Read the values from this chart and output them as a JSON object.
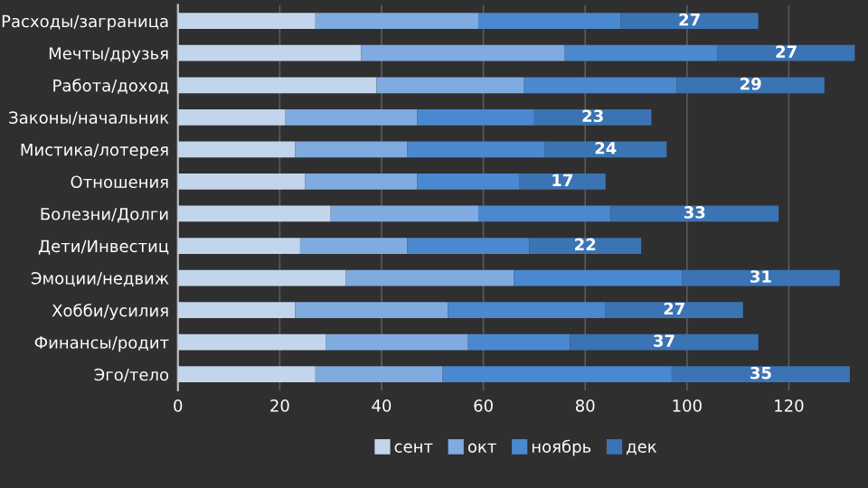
{
  "chart_data": {
    "type": "bar",
    "orientation": "horizontal",
    "stacked": true,
    "categories": [
      "Расходы/заграница",
      "Мечты/друзья",
      "Работа/доход",
      "Законы/начальник",
      "Мистика/лотерея",
      "Отношения",
      "Болезни/Долги",
      "Дети/Инвестиц",
      "Эмоции/недвиж",
      "Хобби/усилия",
      "Финансы/родит",
      "Эго/тело"
    ],
    "series": [
      {
        "name": "сент",
        "color": "#c3d5ec",
        "values": [
          27,
          36,
          39,
          21,
          23,
          25,
          30,
          24,
          33,
          23,
          29,
          27
        ]
      },
      {
        "name": "окт",
        "color": "#80abe0",
        "values": [
          32,
          40,
          29,
          26,
          22,
          22,
          29,
          21,
          33,
          30,
          28,
          25
        ]
      },
      {
        "name": "ноябрь",
        "color": "#4a88cf",
        "values": [
          28,
          30,
          30,
          23,
          27,
          20,
          26,
          24,
          33,
          31,
          20,
          45
        ]
      },
      {
        "name": "дек",
        "color": "#3b74b4",
        "values": [
          27,
          27,
          29,
          23,
          24,
          17,
          33,
          22,
          31,
          27,
          37,
          35
        ],
        "value_labels": [
          "27",
          "27",
          "29",
          "23",
          "24",
          "17",
          "33",
          "22",
          "31",
          "27",
          "37",
          "35"
        ]
      }
    ],
    "xlim": [
      0,
      133
    ],
    "xticks": [
      0,
      20,
      40,
      60,
      80,
      100,
      120
    ],
    "grid": "x",
    "legend": "bottom"
  }
}
